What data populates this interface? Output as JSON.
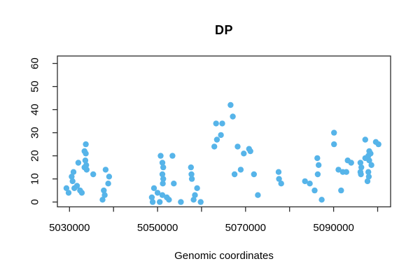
{
  "chart_data": {
    "type": "scatter",
    "title": "DP",
    "xlabel": "Genomic coordinates",
    "ylabel": "",
    "xlim": [
      5027250,
      5102950
    ],
    "ylim": [
      -2.1,
      63.2
    ],
    "x_ticks": [
      5030000,
      5040000,
      5050000,
      5060000,
      5070000,
      5080000,
      5090000,
      5100000
    ],
    "x_tick_labels": [
      "5030000",
      "",
      "5050000",
      "",
      "5070000",
      "",
      "5090000",
      ""
    ],
    "y_ticks": [
      0,
      10,
      20,
      30,
      40,
      50,
      60
    ],
    "grid": false,
    "legend": null,
    "point_color": "#56B4E9",
    "axis_color": "#2b2b2b",
    "point_radius": 4.2,
    "points": [
      [
        5029300,
        6
      ],
      [
        5029800,
        4
      ],
      [
        5030500,
        11
      ],
      [
        5030700,
        9
      ],
      [
        5030900,
        13
      ],
      [
        5031100,
        6
      ],
      [
        5031700,
        7
      ],
      [
        5032000,
        17
      ],
      [
        5032400,
        5
      ],
      [
        5032800,
        4
      ],
      [
        5033400,
        22
      ],
      [
        5033400,
        15
      ],
      [
        5033600,
        18
      ],
      [
        5033700,
        25
      ],
      [
        5033700,
        21
      ],
      [
        5033800,
        16
      ],
      [
        5033900,
        14
      ],
      [
        5035400,
        12
      ],
      [
        5037500,
        1
      ],
      [
        5037800,
        5
      ],
      [
        5038000,
        3
      ],
      [
        5038200,
        14
      ],
      [
        5038800,
        8
      ],
      [
        5039000,
        11
      ],
      [
        5048700,
        2
      ],
      [
        5048900,
        0
      ],
      [
        5049200,
        6
      ],
      [
        5050000,
        4
      ],
      [
        5050500,
        0
      ],
      [
        5050700,
        20
      ],
      [
        5051100,
        17
      ],
      [
        5051100,
        12
      ],
      [
        5051100,
        3
      ],
      [
        5051200,
        8
      ],
      [
        5051300,
        15
      ],
      [
        5051300,
        10
      ],
      [
        5052100,
        2
      ],
      [
        5052600,
        1
      ],
      [
        5053400,
        20
      ],
      [
        5053700,
        8
      ],
      [
        5055300,
        0
      ],
      [
        5057600,
        15
      ],
      [
        5057700,
        12
      ],
      [
        5057800,
        10
      ],
      [
        5058200,
        1
      ],
      [
        5058500,
        3
      ],
      [
        5059000,
        6
      ],
      [
        5059800,
        0
      ],
      [
        5062900,
        24
      ],
      [
        5063300,
        34
      ],
      [
        5063500,
        27
      ],
      [
        5064400,
        29
      ],
      [
        5064700,
        34
      ],
      [
        5066600,
        42
      ],
      [
        5067100,
        37
      ],
      [
        5067500,
        12
      ],
      [
        5068200,
        24
      ],
      [
        5068900,
        14
      ],
      [
        5069600,
        21
      ],
      [
        5070800,
        23
      ],
      [
        5071100,
        22
      ],
      [
        5071900,
        12
      ],
      [
        5072800,
        3
      ],
      [
        5077500,
        13
      ],
      [
        5077600,
        10
      ],
      [
        5078100,
        8
      ],
      [
        5083500,
        9
      ],
      [
        5084600,
        8
      ],
      [
        5085700,
        5
      ],
      [
        5086300,
        19
      ],
      [
        5086400,
        12
      ],
      [
        5086600,
        16
      ],
      [
        5087300,
        1
      ],
      [
        5090100,
        30
      ],
      [
        5090100,
        25
      ],
      [
        5091100,
        14
      ],
      [
        5091700,
        5
      ],
      [
        5092100,
        13
      ],
      [
        5092900,
        13
      ],
      [
        5093200,
        18
      ],
      [
        5094000,
        17
      ],
      [
        5096100,
        17
      ],
      [
        5096100,
        13
      ],
      [
        5096200,
        12
      ],
      [
        5096300,
        15
      ],
      [
        5097200,
        27
      ],
      [
        5097200,
        19
      ],
      [
        5097700,
        9
      ],
      [
        5097900,
        20
      ],
      [
        5097900,
        13
      ],
      [
        5098000,
        11
      ],
      [
        5098100,
        22
      ],
      [
        5098100,
        18
      ],
      [
        5098400,
        21
      ],
      [
        5098600,
        16
      ],
      [
        5099600,
        26
      ],
      [
        5100200,
        25
      ]
    ]
  }
}
